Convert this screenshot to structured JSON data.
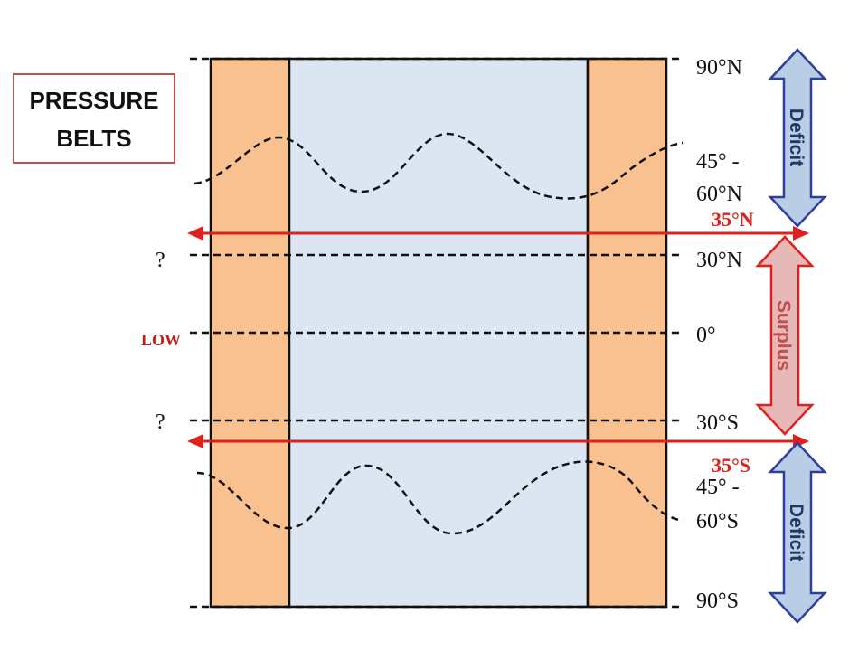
{
  "title_box": {
    "lines": [
      "PRESSURE",
      "BELTS"
    ]
  },
  "latitudes": {
    "n90": "90°N",
    "n45": [
      "45° -",
      "60°N"
    ],
    "n35": "35°N",
    "n30": "30°N",
    "eq": "0°",
    "s30": "30°S",
    "s35": "35°S",
    "s45": [
      "45° -",
      "60°S"
    ],
    "s90": "90°S"
  },
  "left_labels": {
    "n30": "?",
    "eq": "LOW",
    "s30": "?"
  },
  "zones": {
    "north": "Deficit",
    "middle": "Surplus",
    "south": "Deficit"
  }
}
